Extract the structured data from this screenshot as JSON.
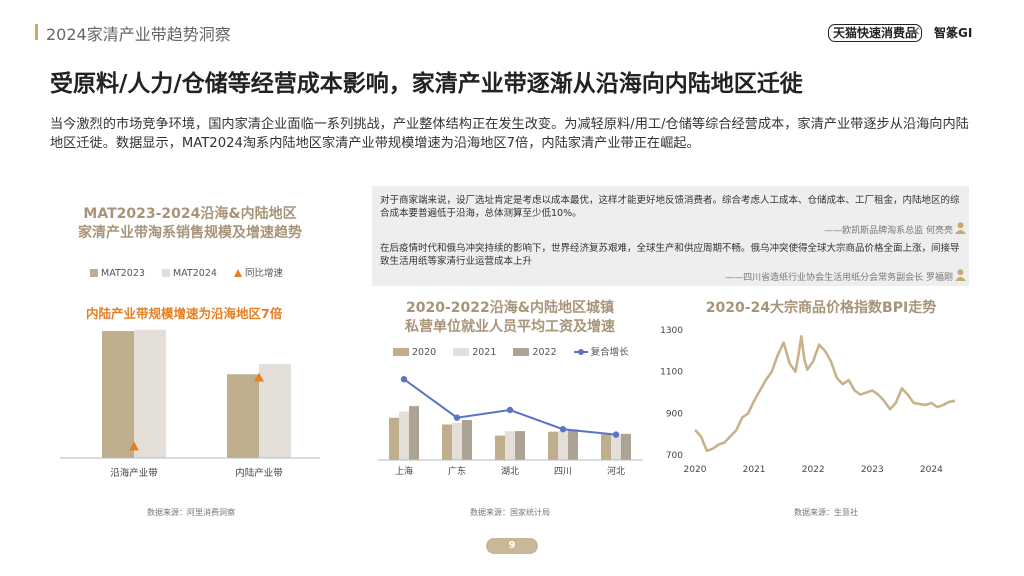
{
  "header": {
    "title": "2024家清产业带趋势洞察",
    "brand_left": "天猫快速消费品",
    "brand_sep": "×",
    "brand_right": "智篆GI"
  },
  "headline": "受原料/人力/仓储等经营成本影响，家清产业带逐渐从沿海向内陆地区迁徙",
  "body_text": "当今激烈的市场竞争环境，国内家清企业面临一系列挑战，产业整体结构正在发生改变。为减轻原料/用工/仓储等综合经营成本，家清产业带逐步从沿海向内陆地区迁徙。数据显示，MAT2024淘系内陆地区家清产业带规模增速为沿海地区7倍，内陆家清产业带正在崛起。",
  "quotes": [
    {
      "text": "对于商家端来说，设厂选址肯定是考虑以成本最优，这样才能更好地反馈消费者。综合考虑人工成本、仓储成本、工厂租金，内陆地区的综合成本要普遍低于沿海，总体测算至少低10%。",
      "source": "——欧凯斯品牌淘系总监 何亮亮"
    },
    {
      "text": "在后疫情时代和俄乌冲突持续的影响下，世界经济复苏艰难，全球生产和供应周期不畅。俄乌冲突使得全球大宗商品价格全面上涨，间接导致生活用纸等家清行业运营成本上升",
      "source": "——四川省造纸行业协会生活用纸分会常务副会长 罗福刚"
    }
  ],
  "page_number": "9",
  "colors": {
    "accent": "#c8a96e",
    "title": "#a89478",
    "highlight": "#e67e22",
    "series_dark": "#bfae8e",
    "series_light": "#e3dfd8",
    "series_mid": "#aca395",
    "line_blue": "#5b73c4",
    "bpi_line": "#c8b28c"
  },
  "chart_data": [
    {
      "type": "bar",
      "title": "MAT2023-2024沿海&内陆地区\n家清产业带淘系销售规模及增速趋势",
      "subtitle": "内陆产业带规模增速为沿海地区7倍",
      "categories": [
        "沿海产业带",
        "内陆产业带"
      ],
      "series": [
        {
          "name": "MAT2023",
          "values": [
            100,
            66
          ],
          "color": "#bfae8e"
        },
        {
          "name": "MAT2024",
          "values": [
            101,
            74
          ],
          "color": "#e3dfd8"
        }
      ],
      "growth_series": {
        "name": "同比增速",
        "values": [
          1,
          7
        ],
        "marker": "triangle",
        "color": "#e67e22"
      },
      "ylim": [
        0,
        104
      ],
      "growth_ylim": [
        0,
        11.5
      ],
      "source": "数据来源：阿里消费洞察"
    },
    {
      "type": "bar",
      "title": "2020-2022沿海&内陆地区城镇\n私营单位就业人员平均工资及增速",
      "categories": [
        "上海",
        "广东",
        "湖北",
        "四川",
        "河北"
      ],
      "series": [
        {
          "name": "2020",
          "values": [
            76,
            64,
            44,
            51,
            46
          ],
          "color": "#bfae8e"
        },
        {
          "name": "2021",
          "values": [
            87,
            67,
            52,
            52,
            47
          ],
          "color": "#e3dfd8"
        },
        {
          "name": "2022",
          "values": [
            97,
            72,
            52,
            55,
            47
          ],
          "color": "#aca395"
        }
      ],
      "line_series": {
        "name": "复合增长",
        "values": [
          10.5,
          5.5,
          6.5,
          4.0,
          3.3
        ],
        "color": "#5b73c4"
      },
      "ylim": [
        0,
        180
      ],
      "line_ylim": [
        0,
        13
      ],
      "source": "数据来源：国家统计局"
    },
    {
      "type": "line",
      "title": "2020-24大宗商品价格指数BPI走势",
      "x_ticks": [
        "2020",
        "2021",
        "2022",
        "2023",
        "2024"
      ],
      "y_ticks": [
        "700",
        "900",
        "1100",
        "1300"
      ],
      "ylim": [
        700,
        1300
      ],
      "xlim": [
        2020.0,
        2024.4
      ],
      "x": [
        2020.0,
        2020.1,
        2020.2,
        2020.3,
        2020.4,
        2020.5,
        2020.6,
        2020.7,
        2020.8,
        2020.9,
        2021.0,
        2021.1,
        2021.2,
        2021.3,
        2021.4,
        2021.5,
        2021.6,
        2021.7,
        2021.75,
        2021.8,
        2021.85,
        2021.9,
        2022.0,
        2022.1,
        2022.2,
        2022.3,
        2022.4,
        2022.5,
        2022.6,
        2022.7,
        2022.8,
        2022.9,
        2023.0,
        2023.1,
        2023.2,
        2023.3,
        2023.4,
        2023.5,
        2023.6,
        2023.7,
        2023.8,
        2023.9,
        2024.0,
        2024.1,
        2024.2,
        2024.3,
        2024.4
      ],
      "y": [
        820,
        790,
        720,
        730,
        750,
        760,
        790,
        820,
        880,
        900,
        960,
        1010,
        1060,
        1100,
        1180,
        1240,
        1140,
        1100,
        1180,
        1270,
        1160,
        1110,
        1150,
        1230,
        1200,
        1150,
        1070,
        1040,
        1060,
        1010,
        990,
        1000,
        1010,
        990,
        960,
        920,
        950,
        1020,
        990,
        950,
        945,
        940,
        950,
        930,
        940,
        955,
        960
      ],
      "line_color": "#c8b28c",
      "source": "数据来源：生意社"
    }
  ]
}
